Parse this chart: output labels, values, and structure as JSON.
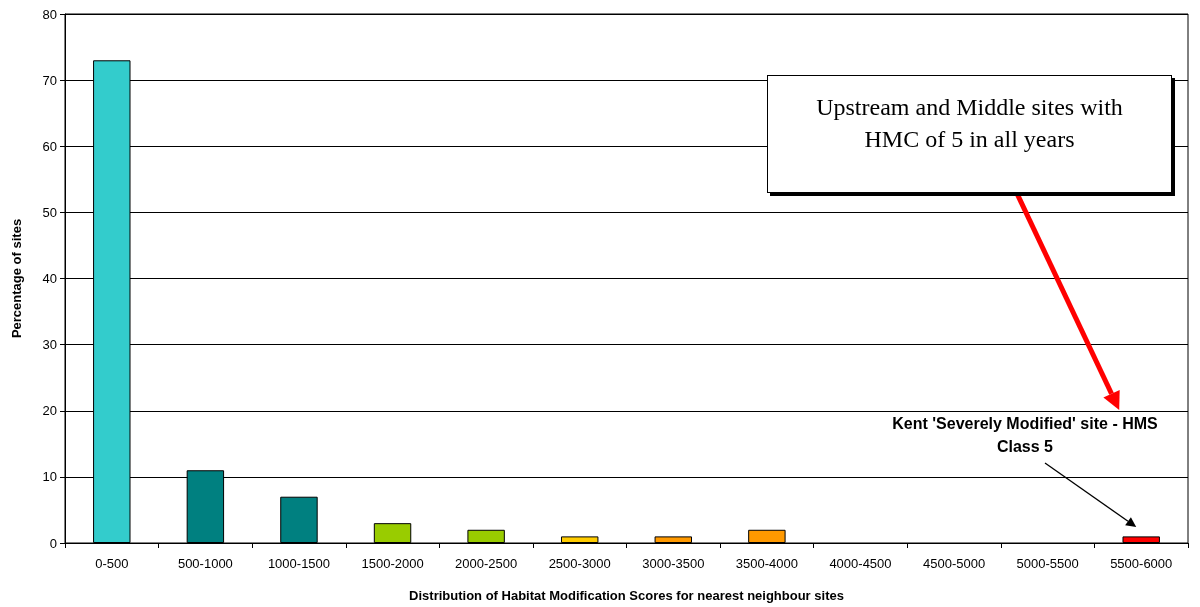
{
  "chart_data": {
    "type": "bar",
    "xlabel": "Distribution of Habitat Modification Scores for nearest neighbour sites",
    "ylabel": "Percentage of sites",
    "categories": [
      "0-500",
      "500-1000",
      "1000-1500",
      "1500-2000",
      "2000-2500",
      "2500-3000",
      "3000-3500",
      "3500-4000",
      "4000-4500",
      "4500-5000",
      "5000-5500",
      "5500-6000"
    ],
    "values": [
      73,
      11,
      7,
      3,
      2,
      1,
      1,
      2,
      null,
      null,
      null,
      1
    ],
    "colors": [
      "#33cccc",
      "#008080",
      "#008080",
      "#99cc00",
      "#99cc00",
      "#ffcc00",
      "#ff9900",
      "#ff9900",
      null,
      null,
      null,
      "#ff0000"
    ],
    "ylim": [
      0,
      80
    ],
    "yticks": [
      0,
      10,
      20,
      30,
      40,
      50,
      60,
      70,
      80
    ],
    "grid": "y",
    "annotations": [
      "Upstream and Middle sites with HMC of 5 in all years",
      "Kent 'Severely Modified' site - HMS Class 5"
    ]
  }
}
